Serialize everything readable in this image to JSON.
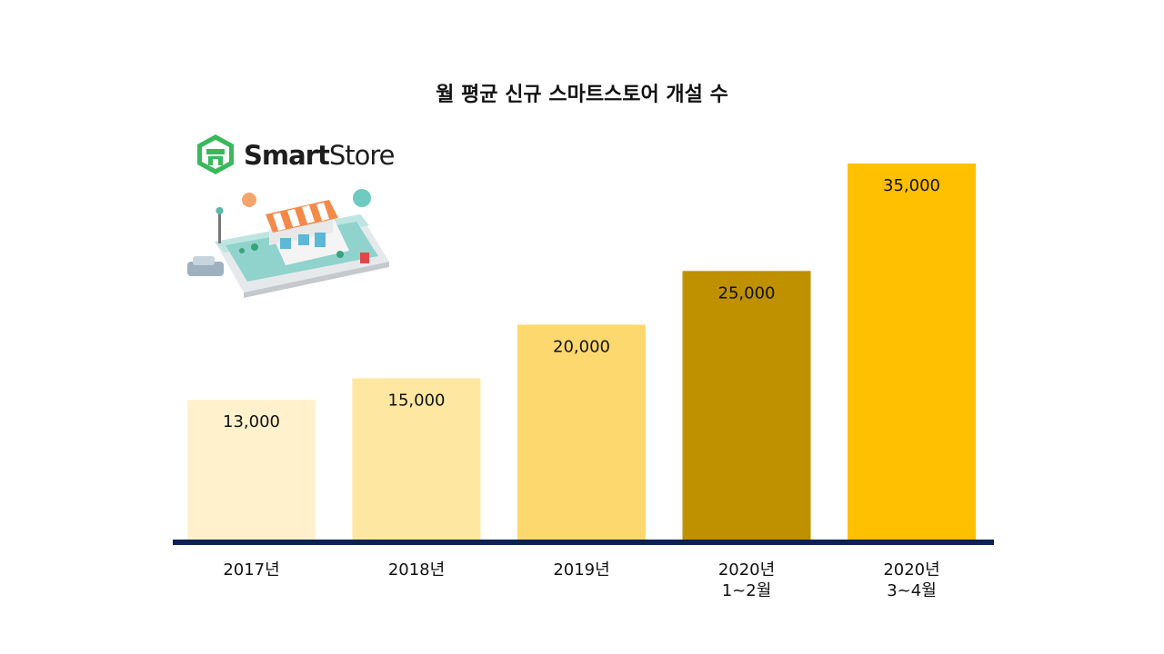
{
  "title": "월 평균 신규 스마트스토어 개설 수",
  "logo": {
    "text_bold": "Smart",
    "text_light": "Store",
    "icon": "smartstore-logo-icon",
    "illustration": "store-on-phone-illustration"
  },
  "colors": {
    "baseline": "#0d2253",
    "label": "#111111"
  },
  "chart_data": {
    "type": "bar",
    "title": "월 평균 신규 스마트스토어 개설 수",
    "categories": [
      [
        "2017년"
      ],
      [
        "2018년"
      ],
      [
        "2019년"
      ],
      [
        "2020년",
        "1~2월"
      ],
      [
        "2020년",
        "3~4월"
      ]
    ],
    "values": [
      13000,
      15000,
      20000,
      25000,
      35000
    ],
    "value_labels": [
      "13,000",
      "15,000",
      "20,000",
      "25,000",
      "35,000"
    ],
    "bar_colors": [
      "#fff1cc",
      "#fee7a1",
      "#fdd86e",
      "#bf9000",
      "#fec000"
    ],
    "ylim": [
      0,
      35000
    ],
    "xlabel": "",
    "ylabel": "",
    "grid": false,
    "legend": "none"
  }
}
